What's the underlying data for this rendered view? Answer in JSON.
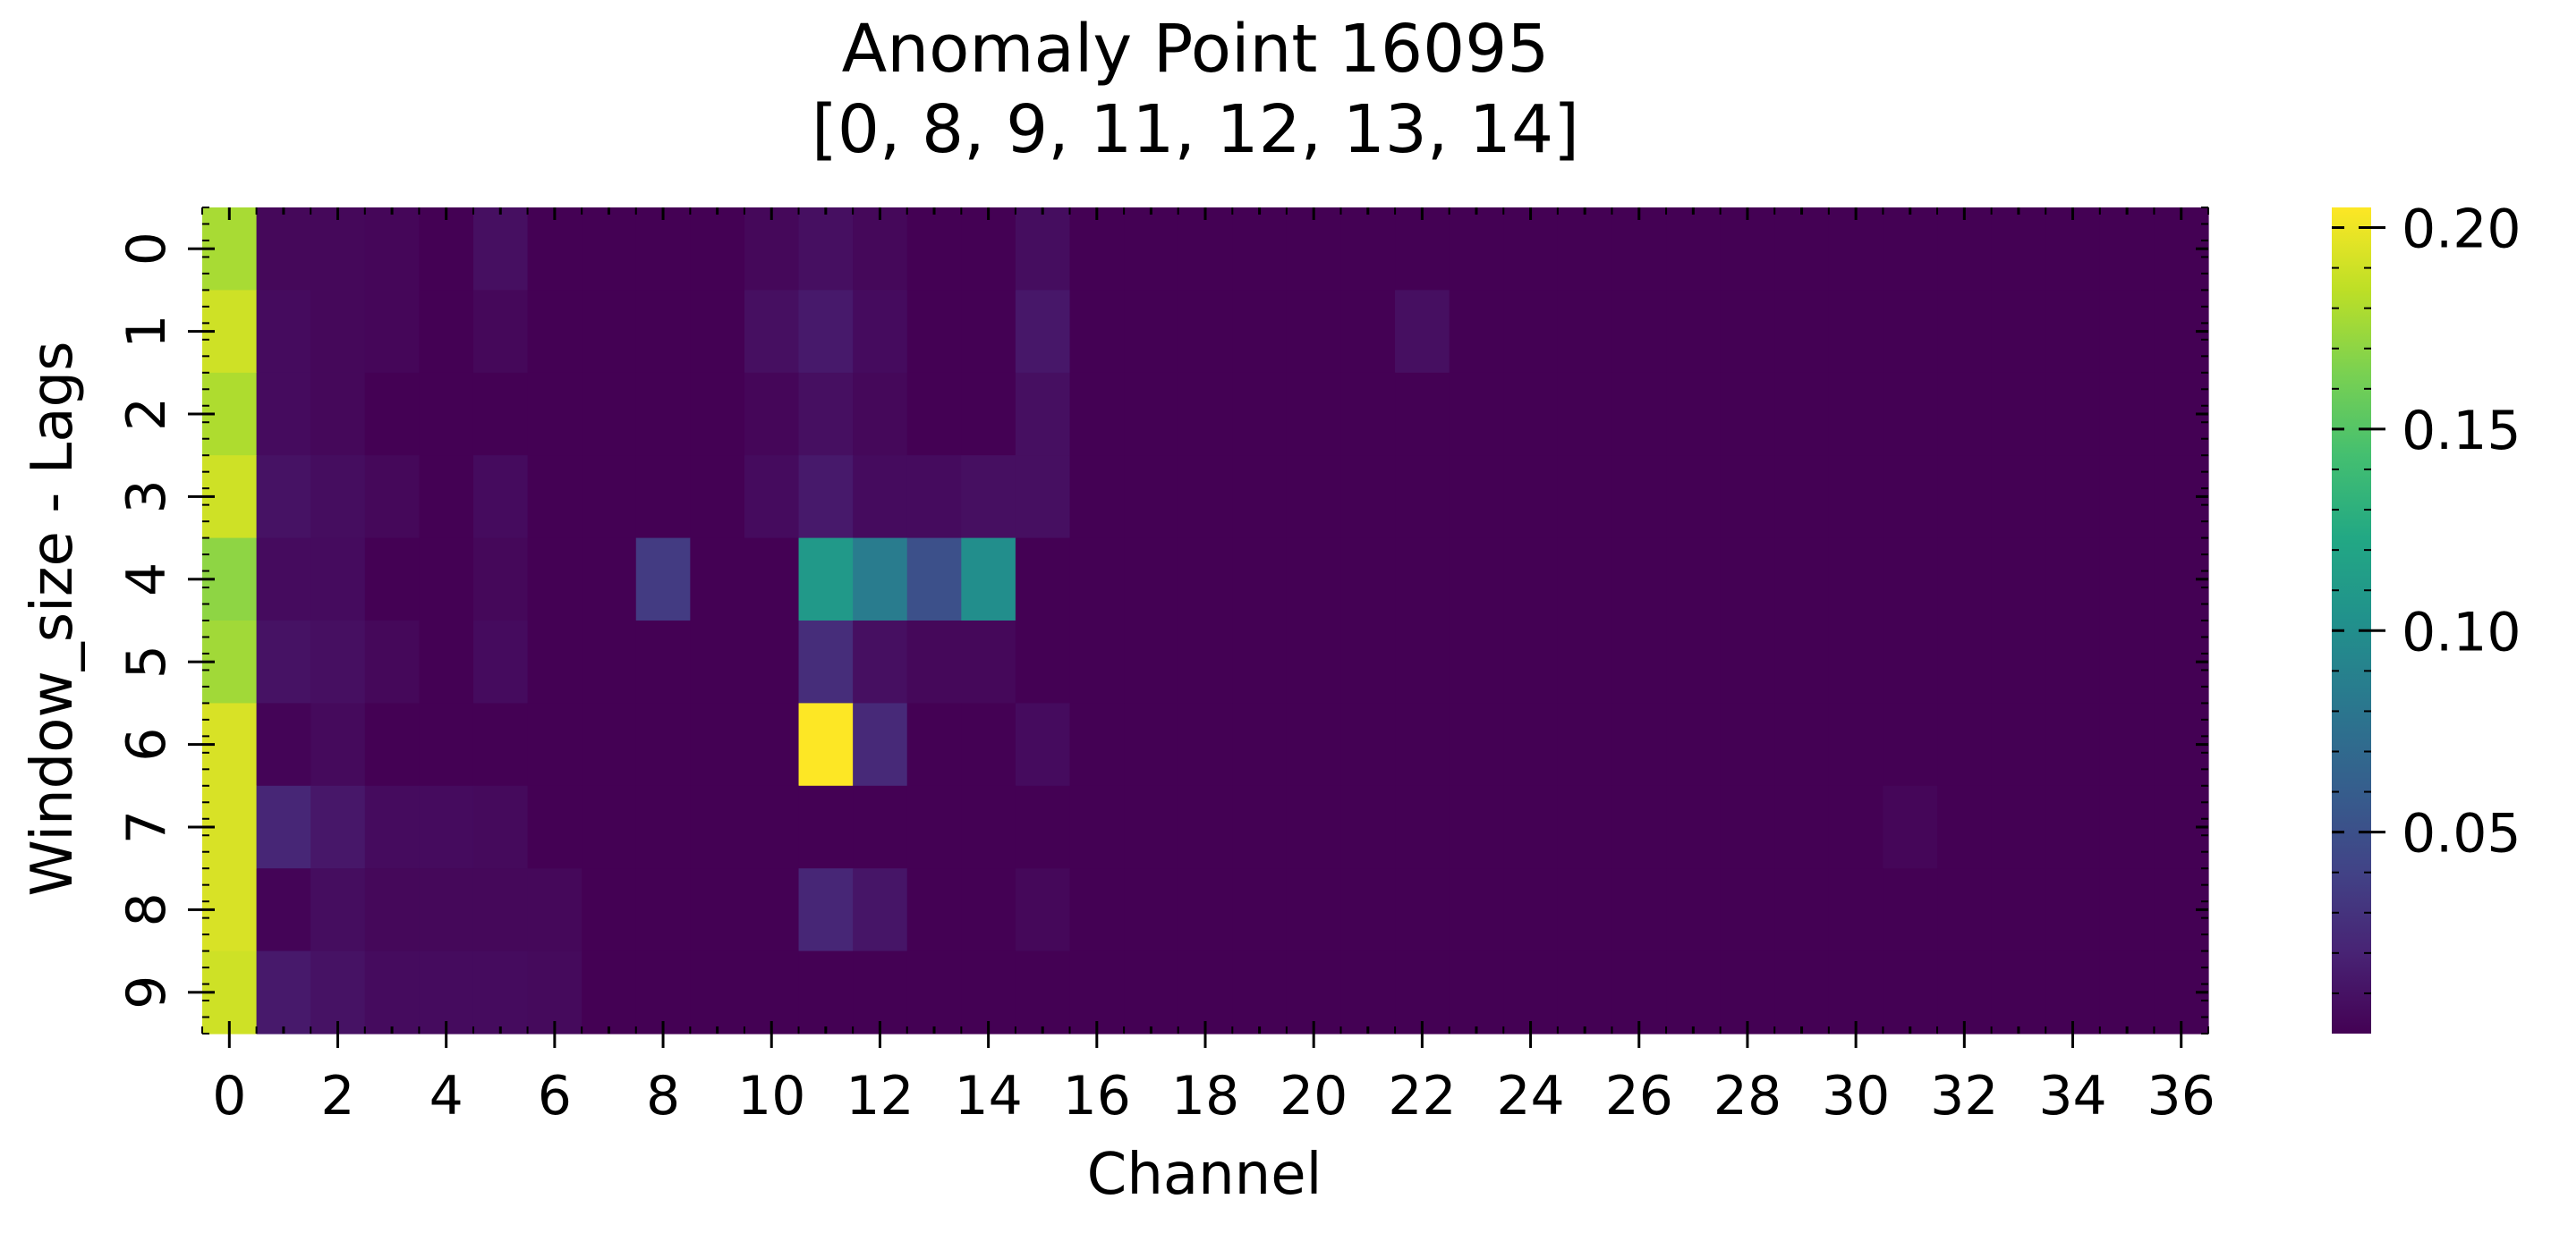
{
  "chart_data": {
    "type": "heatmap",
    "title_line1": "Anomaly Point 16095",
    "title_line2": "[0, 8, 9, 11, 12, 13, 14]",
    "xlabel": "Channel",
    "ylabel": "Window_size - Lags",
    "x_count": 37,
    "y_count": 10,
    "x_tick_labels": [
      "0",
      "2",
      "4",
      "6",
      "8",
      "10",
      "12",
      "14",
      "16",
      "18",
      "20",
      "22",
      "24",
      "26",
      "28",
      "30",
      "32",
      "34",
      "36"
    ],
    "y_tick_labels": [
      "0",
      "1",
      "2",
      "3",
      "4",
      "5",
      "6",
      "7",
      "8",
      "9"
    ],
    "colorbar_ticks": [
      "0.05",
      "0.10",
      "0.15",
      "0.20"
    ],
    "colorbar_tick_values": [
      0.05,
      0.1,
      0.15,
      0.2
    ],
    "colormap": "viridis",
    "vmin": 0.0,
    "vmax": 0.205,
    "cells": [
      {
        "r": 0,
        "c": 0,
        "v": 0.178
      },
      {
        "r": 1,
        "c": 0,
        "v": 0.19
      },
      {
        "r": 2,
        "c": 0,
        "v": 0.18
      },
      {
        "r": 3,
        "c": 0,
        "v": 0.19
      },
      {
        "r": 4,
        "c": 0,
        "v": 0.17
      },
      {
        "r": 5,
        "c": 0,
        "v": 0.176
      },
      {
        "r": 6,
        "c": 0,
        "v": 0.193
      },
      {
        "r": 7,
        "c": 0,
        "v": 0.193
      },
      {
        "r": 8,
        "c": 0,
        "v": 0.193
      },
      {
        "r": 9,
        "c": 0,
        "v": 0.19
      },
      {
        "r": 0,
        "c": 1,
        "v": 0.004
      },
      {
        "r": 1,
        "c": 1,
        "v": 0.006
      },
      {
        "r": 2,
        "c": 1,
        "v": 0.006
      },
      {
        "r": 3,
        "c": 1,
        "v": 0.01
      },
      {
        "r": 4,
        "c": 1,
        "v": 0.006
      },
      {
        "r": 5,
        "c": 1,
        "v": 0.01
      },
      {
        "r": 6,
        "c": 1,
        "v": 0.002
      },
      {
        "r": 7,
        "c": 1,
        "v": 0.022
      },
      {
        "r": 8,
        "c": 1,
        "v": 0.002
      },
      {
        "r": 9,
        "c": 1,
        "v": 0.014
      },
      {
        "r": 0,
        "c": 2,
        "v": 0.004
      },
      {
        "r": 1,
        "c": 2,
        "v": 0.004
      },
      {
        "r": 2,
        "c": 2,
        "v": 0.004
      },
      {
        "r": 3,
        "c": 2,
        "v": 0.007
      },
      {
        "r": 4,
        "c": 2,
        "v": 0.006
      },
      {
        "r": 5,
        "c": 2,
        "v": 0.008
      },
      {
        "r": 6,
        "c": 2,
        "v": 0.005
      },
      {
        "r": 7,
        "c": 2,
        "v": 0.013
      },
      {
        "r": 8,
        "c": 2,
        "v": 0.007
      },
      {
        "r": 9,
        "c": 2,
        "v": 0.01
      },
      {
        "r": 0,
        "c": 3,
        "v": 0.003
      },
      {
        "r": 1,
        "c": 3,
        "v": 0.003
      },
      {
        "r": 3,
        "c": 3,
        "v": 0.004
      },
      {
        "r": 5,
        "c": 3,
        "v": 0.004
      },
      {
        "r": 7,
        "c": 3,
        "v": 0.006
      },
      {
        "r": 8,
        "c": 3,
        "v": 0.004
      },
      {
        "r": 9,
        "c": 3,
        "v": 0.006
      },
      {
        "r": 7,
        "c": 4,
        "v": 0.006
      },
      {
        "r": 8,
        "c": 4,
        "v": 0.004
      },
      {
        "r": 9,
        "c": 4,
        "v": 0.006
      },
      {
        "r": 0,
        "c": 5,
        "v": 0.008
      },
      {
        "r": 1,
        "c": 5,
        "v": 0.004
      },
      {
        "r": 3,
        "c": 5,
        "v": 0.006
      },
      {
        "r": 4,
        "c": 5,
        "v": 0.004
      },
      {
        "r": 5,
        "c": 5,
        "v": 0.006
      },
      {
        "r": 7,
        "c": 5,
        "v": 0.005
      },
      {
        "r": 8,
        "c": 5,
        "v": 0.004
      },
      {
        "r": 9,
        "c": 5,
        "v": 0.006
      },
      {
        "r": 8,
        "c": 6,
        "v": 0.004
      },
      {
        "r": 9,
        "c": 6,
        "v": 0.005
      },
      {
        "r": 4,
        "c": 8,
        "v": 0.035
      },
      {
        "r": 0,
        "c": 10,
        "v": 0.004
      },
      {
        "r": 1,
        "c": 10,
        "v": 0.008
      },
      {
        "r": 2,
        "c": 10,
        "v": 0.003
      },
      {
        "r": 3,
        "c": 10,
        "v": 0.006
      },
      {
        "r": 0,
        "c": 11,
        "v": 0.008
      },
      {
        "r": 1,
        "c": 11,
        "v": 0.014
      },
      {
        "r": 2,
        "c": 11,
        "v": 0.008
      },
      {
        "r": 3,
        "c": 11,
        "v": 0.014
      },
      {
        "r": 4,
        "c": 11,
        "v": 0.11
      },
      {
        "r": 5,
        "c": 11,
        "v": 0.026
      },
      {
        "r": 6,
        "c": 11,
        "v": 0.205
      },
      {
        "r": 8,
        "c": 11,
        "v": 0.022
      },
      {
        "r": 0,
        "c": 12,
        "v": 0.004
      },
      {
        "r": 1,
        "c": 12,
        "v": 0.006
      },
      {
        "r": 2,
        "c": 12,
        "v": 0.004
      },
      {
        "r": 3,
        "c": 12,
        "v": 0.006
      },
      {
        "r": 4,
        "c": 12,
        "v": 0.085
      },
      {
        "r": 5,
        "c": 12,
        "v": 0.008
      },
      {
        "r": 6,
        "c": 12,
        "v": 0.024
      },
      {
        "r": 8,
        "c": 12,
        "v": 0.012
      },
      {
        "r": 3,
        "c": 13,
        "v": 0.006
      },
      {
        "r": 4,
        "c": 13,
        "v": 0.05
      },
      {
        "r": 5,
        "c": 13,
        "v": 0.004
      },
      {
        "r": 3,
        "c": 14,
        "v": 0.008
      },
      {
        "r": 4,
        "c": 14,
        "v": 0.1
      },
      {
        "r": 5,
        "c": 14,
        "v": 0.004
      },
      {
        "r": 0,
        "c": 15,
        "v": 0.007
      },
      {
        "r": 1,
        "c": 15,
        "v": 0.013
      },
      {
        "r": 2,
        "c": 15,
        "v": 0.008
      },
      {
        "r": 3,
        "c": 15,
        "v": 0.008
      },
      {
        "r": 6,
        "c": 15,
        "v": 0.006
      },
      {
        "r": 8,
        "c": 15,
        "v": 0.004
      },
      {
        "r": 1,
        "c": 22,
        "v": 0.008
      },
      {
        "r": 7,
        "c": 31,
        "v": 0.003
      }
    ]
  }
}
